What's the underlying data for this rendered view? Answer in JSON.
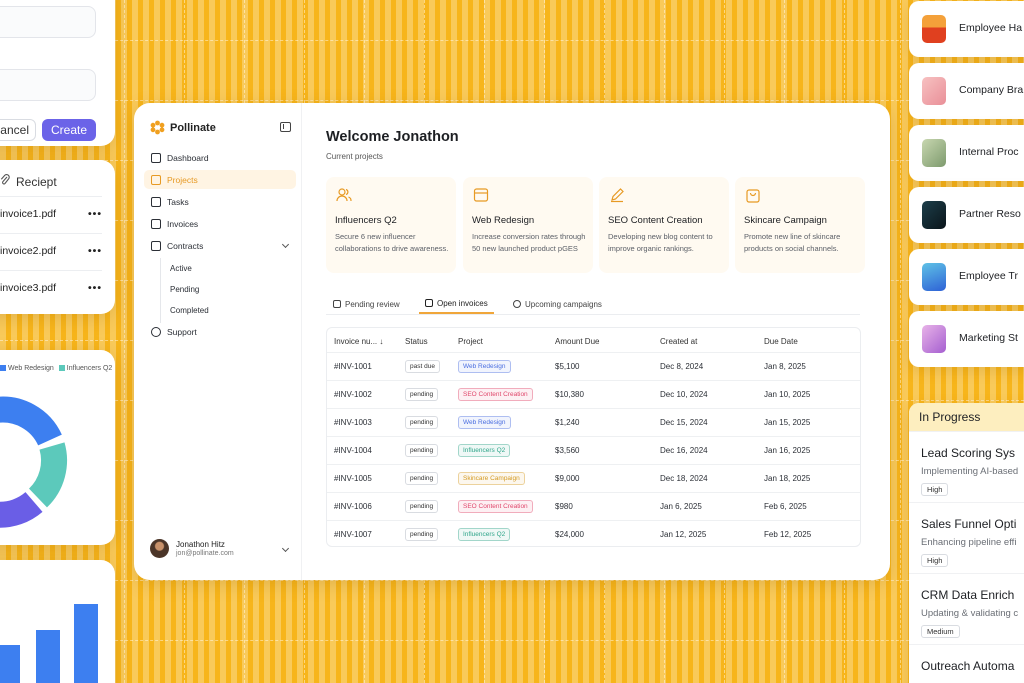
{
  "form_card": {
    "cancel_label": "Cancel",
    "create_label": "Create"
  },
  "receipt_card": {
    "title": "Reciept",
    "files": [
      "invoice1.pdf",
      "invoice2.pdf",
      "invoice3.pdf"
    ],
    "more_label": "•••"
  },
  "donut_card": {
    "legend": [
      {
        "name": "Web Redesign",
        "color": "#3d7ff0"
      },
      {
        "name": "Influencers Q2",
        "color": "#5cc9bb"
      }
    ]
  },
  "app": {
    "brand": "Pollinate",
    "nav": {
      "dashboard": "Dashboard",
      "projects": "Projects",
      "tasks": "Tasks",
      "invoices": "Invoices",
      "contracts": "Contracts",
      "active": "Active",
      "pending": "Pending",
      "completed": "Completed",
      "support": "Support"
    },
    "user": {
      "name": "Jonathon Hitz",
      "email": "jon@pollinate.com"
    },
    "welcome": "Welcome Jonathon",
    "current_projects_label": "Current projects",
    "projects": [
      {
        "title": "Influencers Q2",
        "desc": "Secure 6 new influencer collaborations to drive awareness.",
        "icon": "users-icon"
      },
      {
        "title": "Web Redesign",
        "desc": "Increase conversion rates through 50 new launched product pGES",
        "icon": "browser-icon"
      },
      {
        "title": "SEO Content Creation",
        "desc": "Developing new blog content to improve organic rankings.",
        "icon": "pen-icon"
      },
      {
        "title": "Skincare Campaign",
        "desc": "Promote new line of skincare products on social channels.",
        "icon": "bag-icon"
      }
    ],
    "tabs": [
      "Pending review",
      "Open invoices",
      "Upcoming campaigns"
    ],
    "table": {
      "headers": [
        "Invoice nu...",
        "Status",
        "Project",
        "Amount Due",
        "Created at",
        "Due Date"
      ],
      "rows": [
        {
          "id": "#INV-1001",
          "status": "past due",
          "project": "Web Redesign",
          "amount": "$5,100",
          "created": "Dec 8, 2024",
          "due": "Jan 8, 2025"
        },
        {
          "id": "#INV-1002",
          "status": "pending",
          "project": "SEO Content Creation",
          "amount": "$10,380",
          "created": "Dec 10, 2024",
          "due": "Jan  10, 2025"
        },
        {
          "id": "#INV-1003",
          "status": "pending",
          "project": "Web Redesign",
          "amount": "$1,240",
          "created": "Dec 15, 2024",
          "due": "Jan 15, 2025"
        },
        {
          "id": "#INV-1004",
          "status": "pending",
          "project": "Influencers Q2",
          "amount": "$3,560",
          "created": "Dec 16, 2024",
          "due": "Jan 16, 2025"
        },
        {
          "id": "#INV-1005",
          "status": "pending",
          "project": "Skincare Campaign",
          "amount": "$9,000",
          "created": "Dec 18, 2024",
          "due": "Jan 18, 2025"
        },
        {
          "id": "#INV-1006",
          "status": "pending",
          "project": "SEO Content Creation",
          "amount": "$980",
          "created": "Jan 6, 2025",
          "due": "Feb 6, 2025"
        },
        {
          "id": "#INV-1007",
          "status": "pending",
          "project": "Influencers Q2",
          "amount": "$24,000",
          "created": "Jan 12, 2025",
          "due": "Feb 12, 2025"
        }
      ]
    },
    "tag_colors": {
      "Web Redesign": "#4a6ee0",
      "SEO Content Creation": "#e0466b",
      "Influencers Q2": "#2fa58a",
      "Skincare Campaign": "#d49a22"
    }
  },
  "right_cards": [
    "Employee Ha",
    "Company Bra",
    "Internal Proc",
    "Partner Reso",
    "Employee Tr",
    "Marketing St"
  ],
  "in_progress": {
    "title": "In Progress",
    "items": [
      {
        "title": "Lead Scoring Sys",
        "desc": "Implementing AI-based",
        "priority": "High"
      },
      {
        "title": "Sales Funnel Opti",
        "desc": "Enhancing pipeline effi",
        "priority": "High"
      },
      {
        "title": "CRM Data Enrich",
        "desc": "Updating & validating c",
        "priority": "Medium"
      },
      {
        "title": "Outreach Automa",
        "desc": "",
        "priority": ""
      }
    ]
  }
}
